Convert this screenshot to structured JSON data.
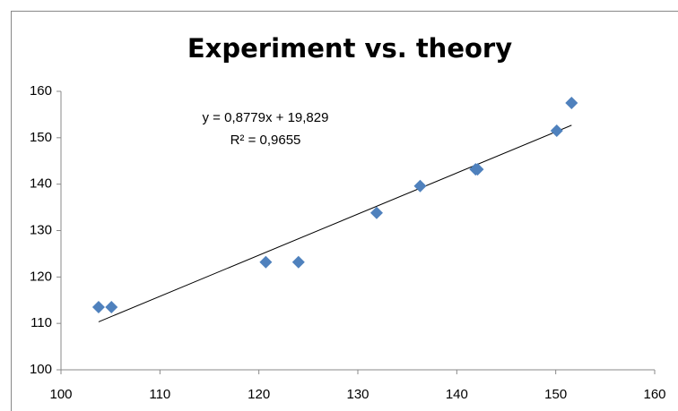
{
  "chart_data": {
    "type": "scatter",
    "title": "Experiment vs. theory",
    "series": [
      {
        "color": "#4f81bd",
        "x": [
          103.8,
          105.1,
          120.7,
          124.0,
          131.9,
          136.3,
          141.9,
          142.1,
          150.1,
          151.6
        ],
        "values": [
          113.5,
          113.5,
          123.2,
          123.2,
          133.8,
          139.6,
          143.2,
          143.2,
          151.5,
          157.5
        ]
      }
    ],
    "trendline": {
      "color": "#000000",
      "labels": [
        "y = 0,8779x + 19,829",
        "R² = 0,9655"
      ]
    },
    "xlim": [
      100,
      160
    ],
    "xticks": [
      100,
      110,
      120,
      130,
      140,
      150,
      160
    ],
    "ylim": [
      100,
      160
    ],
    "yticks": [
      100,
      110,
      120,
      130,
      140,
      150,
      160
    ],
    "grid": false
  }
}
